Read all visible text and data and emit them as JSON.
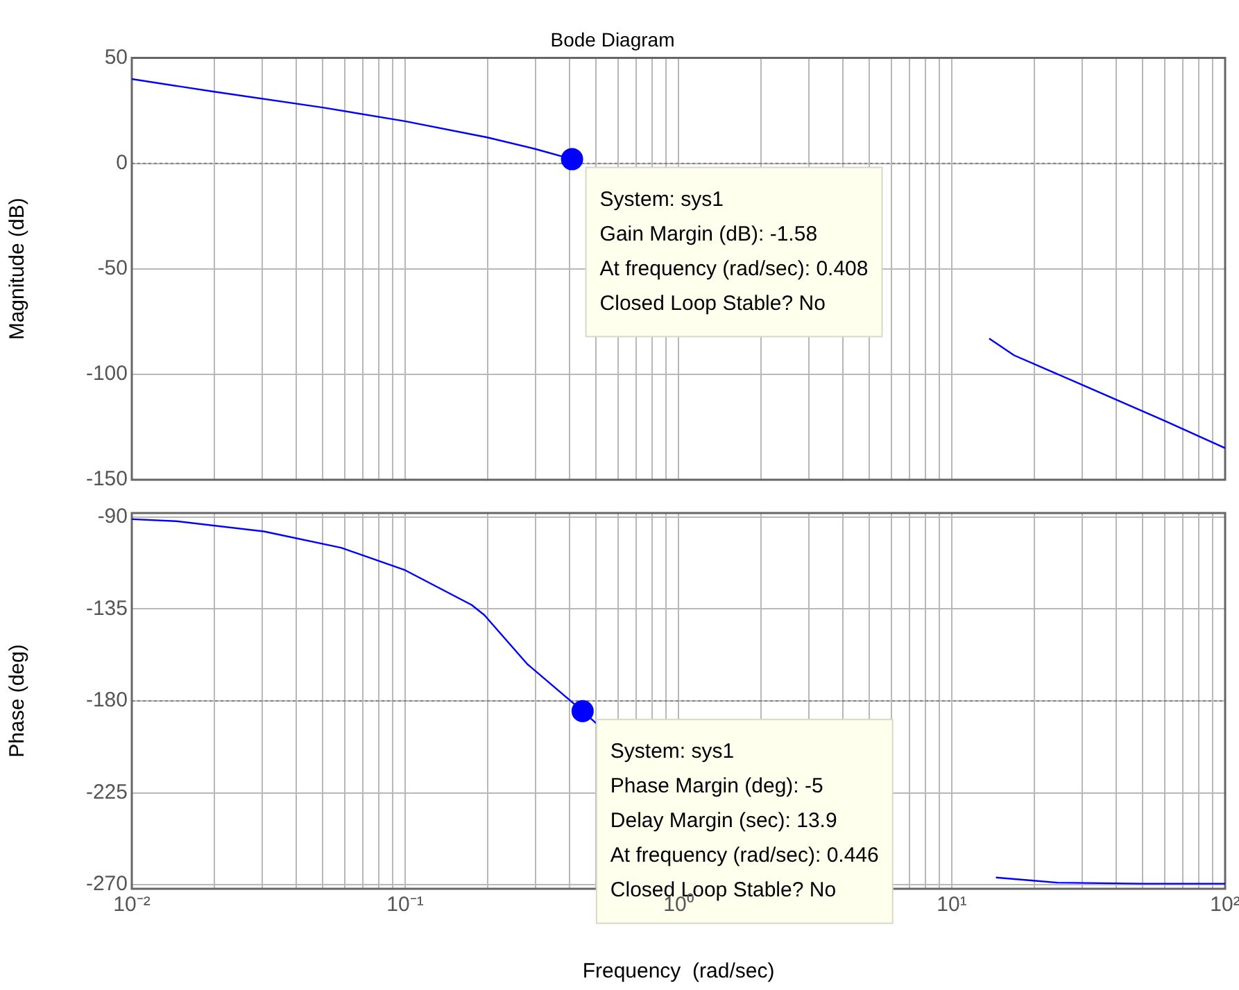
{
  "chart_data": [
    {
      "type": "line",
      "title": "Bode Diagram",
      "ylabel": "Magnitude (dB)",
      "log": "x",
      "grid": true,
      "tick_labels": "y",
      "xlim": [
        0.01,
        100
      ],
      "ylim": [
        -150,
        50
      ],
      "yticks": [
        -150,
        -100,
        -50,
        0,
        50
      ],
      "xticks": [
        {
          "value": 0.01,
          "label": null
        },
        {
          "value": 0.02,
          "label": null
        },
        {
          "value": 0.03,
          "label": null
        },
        {
          "value": 0.04,
          "label": null
        },
        {
          "value": 0.05,
          "label": null
        },
        {
          "value": 0.06,
          "label": null
        },
        {
          "value": 0.07,
          "label": null
        },
        {
          "value": 0.08,
          "label": null
        },
        {
          "value": 0.09,
          "label": null
        },
        {
          "value": 0.1,
          "label": null
        },
        {
          "value": 0.2,
          "label": null
        },
        {
          "value": 0.3,
          "label": null
        },
        {
          "value": 0.4,
          "label": null
        },
        {
          "value": 0.5,
          "label": null
        },
        {
          "value": 0.6,
          "label": null
        },
        {
          "value": 0.7,
          "label": null
        },
        {
          "value": 0.8,
          "label": null
        },
        {
          "value": 0.9,
          "label": null
        },
        {
          "value": 1,
          "label": null
        },
        {
          "value": 2,
          "label": null
        },
        {
          "value": 3,
          "label": null
        },
        {
          "value": 4,
          "label": null
        },
        {
          "value": 5,
          "label": null
        },
        {
          "value": 6,
          "label": null
        },
        {
          "value": 7,
          "label": null
        },
        {
          "value": 8,
          "label": null
        },
        {
          "value": 9,
          "label": null
        },
        {
          "value": 10,
          "label": null
        },
        {
          "value": 20,
          "label": null
        },
        {
          "value": 30,
          "label": null
        },
        {
          "value": 40,
          "label": null
        },
        {
          "value": 50,
          "label": null
        },
        {
          "value": 60,
          "label": null
        },
        {
          "value": 70,
          "label": null
        },
        {
          "value": 80,
          "label": null
        },
        {
          "value": 90,
          "label": null
        },
        {
          "value": 100,
          "label": null
        }
      ],
      "ref_lines": [
        {
          "axis": "y",
          "value": 0,
          "color": "#808080",
          "line_style": "dotted"
        }
      ],
      "series": [
        {
          "color": "#0000ff",
          "x": [
            0.01,
            0.02,
            0.05,
            0.1,
            0.2,
            0.3,
            0.408,
            2,
            13.7,
            16.9,
            30,
            60,
            100
          ],
          "values": [
            40,
            34,
            26.5,
            20,
            12.3,
            6.8,
            2,
            null,
            -83,
            -91,
            -105,
            -122,
            -135
          ]
        }
      ],
      "annotations": [
        {
          "text": "System: sys1\nGain Margin (dB): -1.58\nAt frequency (rad/sec): 0.408\nClosed Loop Stable? No",
          "x": 0.408,
          "y": 2
        }
      ]
    },
    {
      "type": "line",
      "xlabel": "Frequency  (rad/sec)",
      "ylabel": "Phase (deg)",
      "log": "x",
      "grid": true,
      "xlim": [
        0.01,
        100
      ],
      "ylim": [
        -272,
        -88
      ],
      "yticks": [
        -270,
        -225,
        -180,
        -135,
        -90
      ],
      "xticks": [
        {
          "value": 0.01,
          "label": "10⁻²"
        },
        {
          "value": 0.02,
          "label": null
        },
        {
          "value": 0.03,
          "label": null
        },
        {
          "value": 0.04,
          "label": null
        },
        {
          "value": 0.05,
          "label": null
        },
        {
          "value": 0.06,
          "label": null
        },
        {
          "value": 0.07,
          "label": null
        },
        {
          "value": 0.08,
          "label": null
        },
        {
          "value": 0.09,
          "label": null
        },
        {
          "value": 0.1,
          "label": "10⁻¹"
        },
        {
          "value": 0.2,
          "label": null
        },
        {
          "value": 0.3,
          "label": null
        },
        {
          "value": 0.4,
          "label": null
        },
        {
          "value": 0.5,
          "label": null
        },
        {
          "value": 0.6,
          "label": null
        },
        {
          "value": 0.7,
          "label": null
        },
        {
          "value": 0.8,
          "label": null
        },
        {
          "value": 0.9,
          "label": null
        },
        {
          "value": 1,
          "label": "10⁰"
        },
        {
          "value": 2,
          "label": null
        },
        {
          "value": 3,
          "label": null
        },
        {
          "value": 4,
          "label": null
        },
        {
          "value": 5,
          "label": null
        },
        {
          "value": 6,
          "label": null
        },
        {
          "value": 7,
          "label": null
        },
        {
          "value": 8,
          "label": null
        },
        {
          "value": 9,
          "label": null
        },
        {
          "value": 10,
          "label": "10¹"
        },
        {
          "value": 20,
          "label": null
        },
        {
          "value": 30,
          "label": null
        },
        {
          "value": 40,
          "label": null
        },
        {
          "value": 50,
          "label": null
        },
        {
          "value": 60,
          "label": null
        },
        {
          "value": 70,
          "label": null
        },
        {
          "value": 80,
          "label": null
        },
        {
          "value": 90,
          "label": null
        },
        {
          "value": 100,
          "label": "10²"
        }
      ],
      "ref_lines": [
        {
          "axis": "y",
          "value": -180,
          "color": "#808080",
          "line_style": "dotted"
        }
      ],
      "series": [
        {
          "color": "#0000ff",
          "x": [
            0.01,
            0.0145,
            0.0304,
            0.0584,
            0.1,
            0.175,
            0.195,
            0.28,
            0.446,
            0.5,
            2,
            14.5,
            19.9,
            24.3,
            50,
            100
          ],
          "values": [
            -91,
            -92,
            -97,
            -105,
            -116,
            -133,
            -138,
            -162,
            -185,
            -191,
            null,
            -266.5,
            -268,
            -269,
            -269.5,
            -269.5
          ]
        }
      ],
      "annotations": [
        {
          "text": "System: sys1\nPhase Margin (deg): -5\nDelay Margin (sec): 13.9\nAt frequency (rad/sec): 0.446\nClosed Loop Stable? No",
          "x": 0.446,
          "y": -185
        }
      ]
    }
  ]
}
